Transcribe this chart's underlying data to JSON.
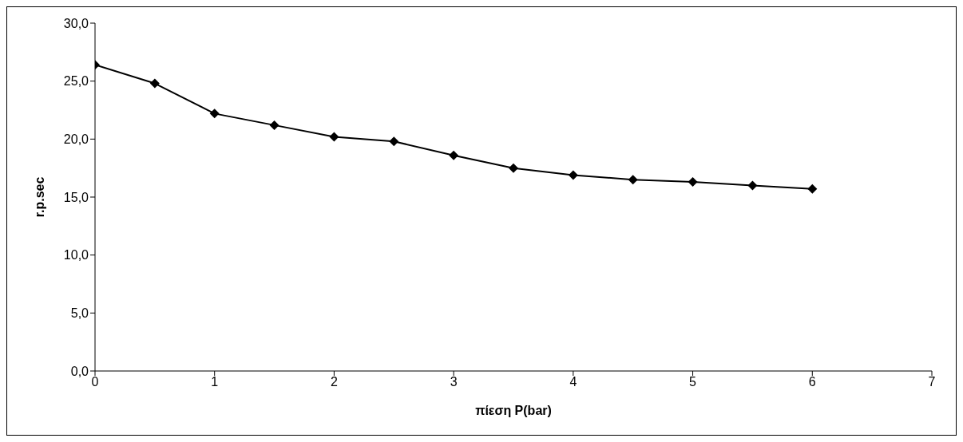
{
  "chart_data": {
    "type": "line",
    "xlabel": "πίεση P(bar)",
    "ylabel": "r.p.sec",
    "x": [
      0,
      0.5,
      1,
      1.5,
      2,
      2.5,
      3,
      3.5,
      4,
      4.5,
      5,
      5.5,
      6
    ],
    "series": [
      {
        "color": "#000000",
        "values": [
          26.4,
          24.8,
          22.2,
          21.2,
          20.2,
          19.8,
          18.6,
          17.5,
          16.9,
          16.5,
          16.3,
          16.0,
          15.7
        ]
      }
    ],
    "xlim": [
      0,
      7
    ],
    "xticks": [
      0,
      1,
      2,
      3,
      4,
      5,
      6,
      7
    ],
    "ylim": [
      0,
      30
    ],
    "yticks": [
      {
        "value": 0,
        "label": "0,0"
      },
      {
        "value": 5,
        "label": "5,0"
      },
      {
        "value": 10,
        "label": "10,0"
      },
      {
        "value": 15,
        "label": "15,0"
      },
      {
        "value": 20,
        "label": "20,0"
      },
      {
        "value": 25,
        "label": "25,0"
      },
      {
        "value": 30,
        "label": "30,0"
      }
    ],
    "marker": "diamond",
    "line_style": "solid",
    "grid": false,
    "legend": false
  }
}
